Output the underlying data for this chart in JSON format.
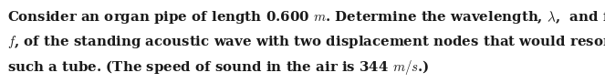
{
  "lines": [
    "Consider an organ pipe of length 0.600 $m$. Determine the wavelength, $\\lambda$,  and frequency,",
    "$f$, of the standing acoustic wave with two displacement nodes that would resonate in",
    "such a tube. (The speed of sound in the air is 344 $m/s$.)"
  ],
  "background_color": "#ffffff",
  "text_color": "#1a1a1a",
  "font_size": 10.8,
  "figwidth": 6.63,
  "figheight": 0.91,
  "dpi": 100
}
